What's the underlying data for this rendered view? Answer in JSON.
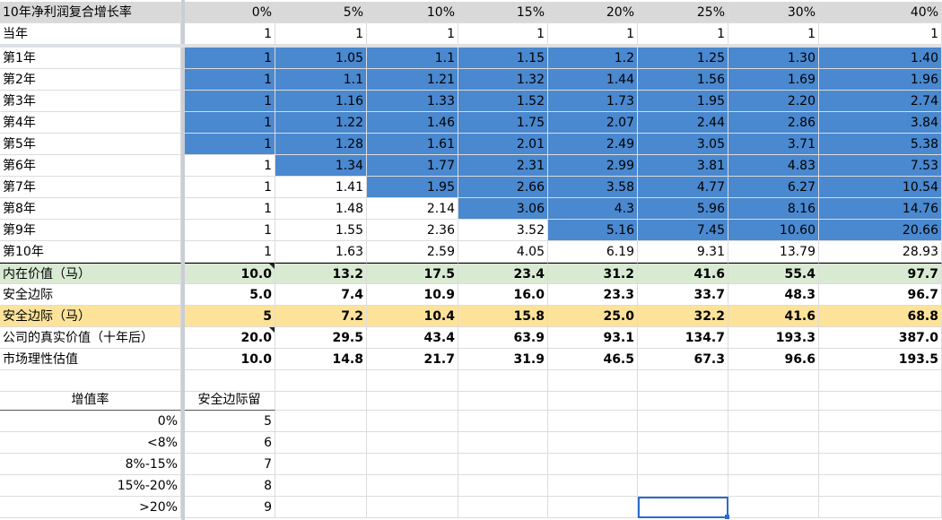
{
  "table": {
    "corner_label": "10年净利润复合增长率",
    "rates": [
      "0%",
      "5%",
      "10%",
      "15%",
      "20%",
      "25%",
      "30%",
      "40%"
    ],
    "current_year": {
      "label": "当年",
      "values": [
        "1",
        "1",
        "1",
        "1",
        "1",
        "1",
        "1",
        "1"
      ]
    },
    "years": [
      {
        "label": "第1年",
        "values": [
          "1",
          "1.05",
          "1.1",
          "1.15",
          "1.2",
          "1.25",
          "1.30",
          "1.40"
        ]
      },
      {
        "label": "第2年",
        "values": [
          "1",
          "1.1",
          "1.21",
          "1.32",
          "1.44",
          "1.56",
          "1.69",
          "1.96"
        ]
      },
      {
        "label": "第3年",
        "values": [
          "1",
          "1.16",
          "1.33",
          "1.52",
          "1.73",
          "1.95",
          "2.20",
          "2.74"
        ]
      },
      {
        "label": "第4年",
        "values": [
          "1",
          "1.22",
          "1.46",
          "1.75",
          "2.07",
          "2.44",
          "2.86",
          "3.84"
        ]
      },
      {
        "label": "第5年",
        "values": [
          "1",
          "1.28",
          "1.61",
          "2.01",
          "2.49",
          "3.05",
          "3.71",
          "5.38"
        ]
      },
      {
        "label": "第6年",
        "values": [
          "1",
          "1.34",
          "1.77",
          "2.31",
          "2.99",
          "3.81",
          "4.83",
          "7.53"
        ]
      },
      {
        "label": "第7年",
        "values": [
          "1",
          "1.41",
          "1.95",
          "2.66",
          "3.58",
          "4.77",
          "6.27",
          "10.54"
        ]
      },
      {
        "label": "第8年",
        "values": [
          "1",
          "1.48",
          "2.14",
          "3.06",
          "4.3",
          "5.96",
          "8.16",
          "14.76"
        ]
      },
      {
        "label": "第9年",
        "values": [
          "1",
          "1.55",
          "2.36",
          "3.52",
          "5.16",
          "7.45",
          "10.60",
          "20.66"
        ]
      },
      {
        "label": "第10年",
        "values": [
          "1",
          "1.63",
          "2.59",
          "4.05",
          "6.19",
          "9.31",
          "13.79",
          "28.93"
        ]
      }
    ],
    "summary": [
      {
        "label": "内在价值（马）",
        "values": [
          "10.0",
          "13.2",
          "17.5",
          "23.4",
          "31.2",
          "41.6",
          "55.4",
          "97.7"
        ]
      },
      {
        "label": "安全边际",
        "values": [
          "5.0",
          "7.4",
          "10.9",
          "16.0",
          "23.3",
          "33.7",
          "48.3",
          "96.7"
        ]
      },
      {
        "label": "安全边际（马）",
        "values": [
          "5",
          "7.2",
          "10.4",
          "15.8",
          "25.0",
          "32.2",
          "41.6",
          "68.8"
        ]
      },
      {
        "label": "公司的真实价值（十年后）",
        "values": [
          "20.0",
          "29.5",
          "43.4",
          "63.9",
          "93.1",
          "134.7",
          "193.3",
          "387.0"
        ]
      },
      {
        "label": "市场理性估值",
        "values": [
          "10.0",
          "14.8",
          "21.7",
          "31.9",
          "46.5",
          "67.3",
          "96.6",
          "193.5"
        ]
      }
    ]
  },
  "lookup": {
    "header_rate": "增值率",
    "header_margin": "安全边际留",
    "rows": [
      {
        "rate": "0%",
        "margin": "5"
      },
      {
        "rate": "<8%",
        "margin": "6"
      },
      {
        "rate": "8%-15%",
        "margin": "7"
      },
      {
        "rate": "15%-20%",
        "margin": "8"
      },
      {
        "rate": ">20%",
        "margin": "9"
      }
    ]
  },
  "colors": {
    "blue_fill": "#4a88cf",
    "green_fill": "#d9ead3",
    "yellow_fill": "#fde39a",
    "header_fill": "#d9d9d9",
    "selection": "#2a6bd1"
  }
}
